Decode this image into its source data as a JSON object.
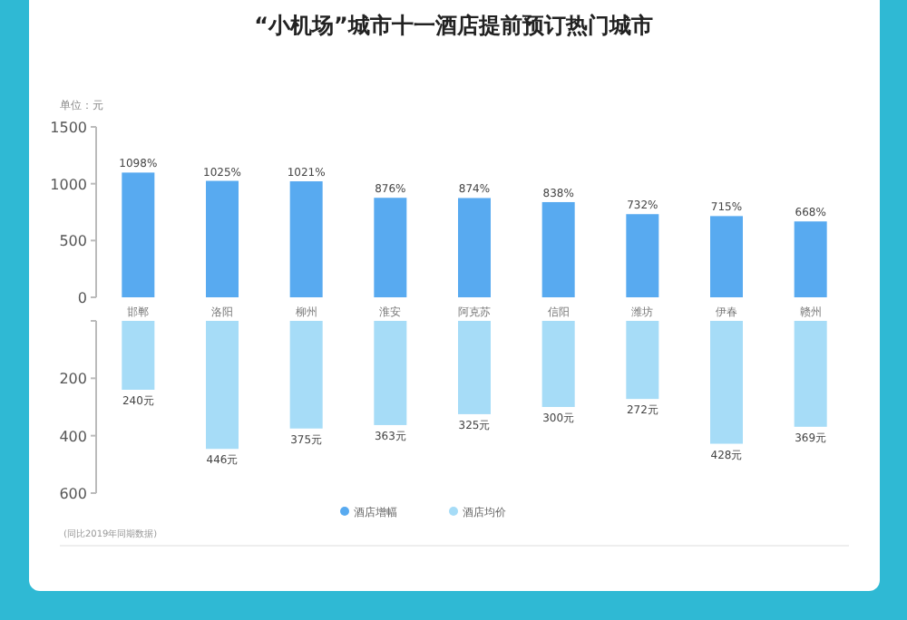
{
  "chart_data": [
    {
      "type": "bar",
      "title": "“小机场”城市十一酒店提前预订热门城市",
      "ylabel": "单位：元",
      "categories": [
        "邯郸",
        "洛阳",
        "柳州",
        "淮安",
        "阿克苏",
        "信阳",
        "潍坊",
        "伊春",
        "赣州"
      ],
      "series": [
        {
          "name": "酒店增幅",
          "color": "#58aaf0",
          "values": [
            1098,
            1025,
            1021,
            876,
            874,
            838,
            732,
            715,
            668
          ],
          "value_labels": [
            "1098%",
            "1025%",
            "1021%",
            "876%",
            "874%",
            "838%",
            "732%",
            "715%",
            "668%"
          ]
        }
      ],
      "ylim": [
        0,
        1500
      ],
      "yticks": [
        0,
        500,
        1000,
        1500
      ],
      "legend": "bottom"
    },
    {
      "type": "bar",
      "categories": [
        null,
        null,
        null,
        null,
        null,
        null,
        null,
        null,
        null
      ],
      "series": [
        {
          "name": "酒店均价",
          "color": "#a6dcf7",
          "values": [
            240,
            446,
            375,
            363,
            325,
            300,
            272,
            428,
            369
          ],
          "value_labels": [
            "240元",
            "446元",
            "375元",
            "363元",
            "325元",
            "300元",
            "272元",
            "428元",
            "369元"
          ]
        }
      ],
      "ylim": [
        600,
        0
      ],
      "yticks": [
        {
          "value": 0,
          "label": null
        },
        200,
        400,
        600
      ],
      "legend": "bottom",
      "annotations": [
        "(同比2019年同期数据)"
      ]
    }
  ]
}
